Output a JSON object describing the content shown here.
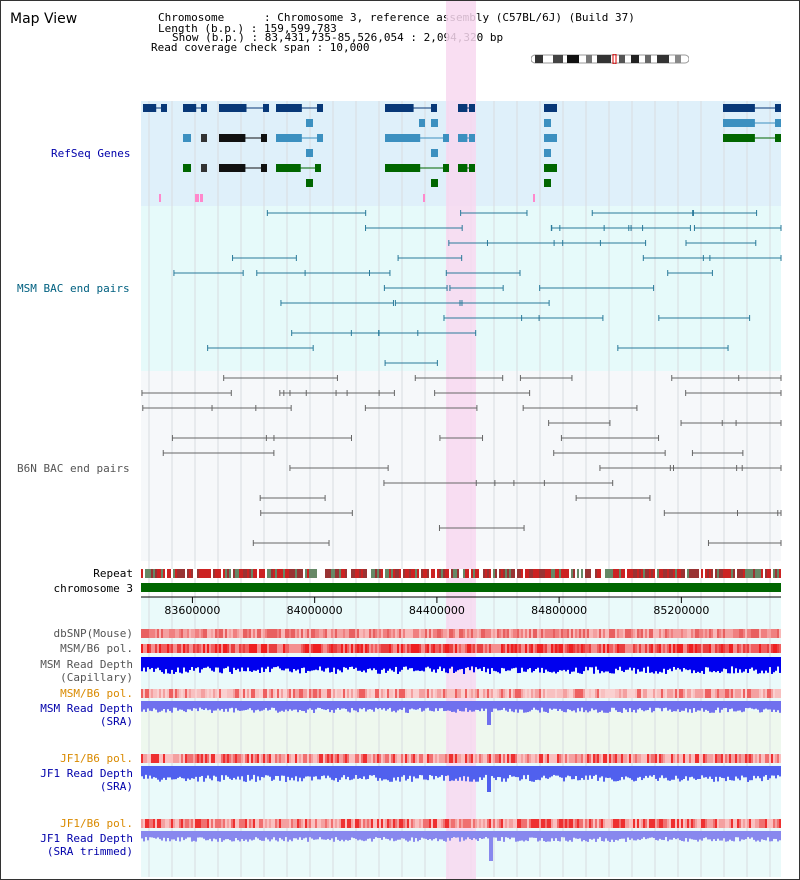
{
  "view_title": "Map View",
  "info": {
    "chromosome": "Chromosome      : Chromosome 3, reference assembly (C57BL/6J) (Build 37)",
    "length": "Length (b.p.) : 159,599,783",
    "show": "Show (b.p.) : 83,431,735-85,526,054 : 2,094,320 bp",
    "coverage": "Read coverage check span : 10,000"
  },
  "labels": {
    "refseq": "RefSeq Genes",
    "msm_bac": "MSM BAC end pairs",
    "b6n_bac": "B6N BAC end pairs",
    "repeat": "Repeat",
    "chromosome": "chromosome 3",
    "dbsnp": "dbSNP(Mouse)",
    "msm_pol1": "MSM/B6 pol.",
    "msm_depth_cap1": "MSM Read Depth",
    "msm_depth_cap2": "(Capillary)",
    "msm_pol2": "MSM/B6 pol.",
    "msm_depth_sra1": "MSM Read Depth",
    "msm_depth_sra2": "(SRA)",
    "jf1_pol1": "JF1/B6 pol.",
    "jf1_depth_sra1": "JF1 Read Depth",
    "jf1_depth_sra2": "(SRA)",
    "jf1_pol2": "JF1/B6 pol.",
    "jf1_depth_trim1": "JF1 Read Depth",
    "jf1_depth_trim2": "(SRA trimmed)"
  },
  "axis": {
    "ticks": [
      {
        "label": "83600000",
        "pos": 83600000
      },
      {
        "label": "84000000",
        "pos": 84000000
      },
      {
        "label": "84400000",
        "pos": 84400000
      },
      {
        "label": "84800000",
        "pos": 84800000
      },
      {
        "label": "85200000",
        "pos": 85200000
      }
    ]
  },
  "colors": {
    "refseq_bg": "#dff0fa",
    "msm_bg": "#e6fafa",
    "b6n_bg": "#f6f8fa",
    "highlight": "#f8d8f0",
    "gene_dark": "#083878",
    "gene_mid": "#3c90c0",
    "gene_green": "#006600",
    "chrom_bar": "#006600",
    "msm_depth_cap": "#0000ee",
    "msm_depth_sra": "#7070ee",
    "jf1_depth": "#5060ee"
  }
}
